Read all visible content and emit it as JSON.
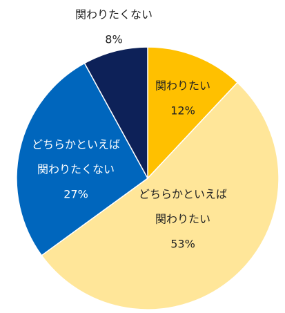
{
  "chart_data": {
    "type": "pie",
    "start_angle_deg": 0,
    "direction": "clockwise",
    "slices": [
      {
        "label_lines": [
          "関わりたい"
        ],
        "value": 12,
        "value_label": "12%",
        "color": "#FFC000",
        "text_color": "#222222"
      },
      {
        "label_lines": [
          "どちらかといえば",
          "関わりたい"
        ],
        "value": 53,
        "value_label": "53%",
        "color": "#FFE699",
        "text_color": "#222222"
      },
      {
        "label_lines": [
          "どちらかといえば",
          "関わりたくない"
        ],
        "value": 27,
        "value_label": "27%",
        "color": "#0066BD",
        "text_color": "#ffffff"
      },
      {
        "label_lines": [
          "関わりたくない"
        ],
        "value": 8,
        "value_label": "8%",
        "color": "#0D2158",
        "text_color": "#222222"
      }
    ]
  }
}
